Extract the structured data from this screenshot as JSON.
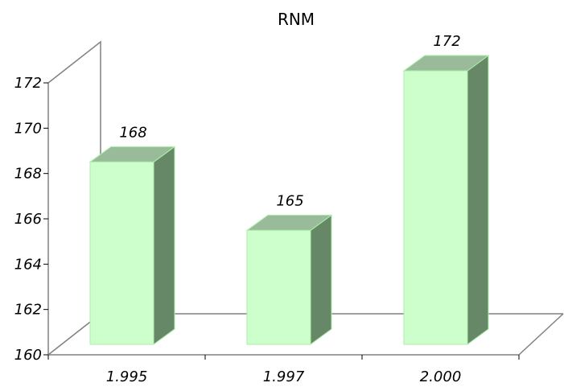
{
  "chart_data": {
    "type": "bar",
    "title": "RNM",
    "categories": [
      "1.995",
      "1.997",
      "2.000"
    ],
    "values": [
      168,
      165,
      172
    ],
    "data_labels": [
      "168",
      "165",
      "172"
    ],
    "ylim": [
      160,
      172
    ],
    "yticks": [
      "160",
      "162",
      "164",
      "166",
      "168",
      "170",
      "172"
    ],
    "xlabel": "",
    "ylabel": "",
    "grid": false,
    "legend": "none",
    "three_d": true,
    "colors": {
      "bar_front": "#ccffcc",
      "bar_top": "#99bb99",
      "bar_side": "#668866",
      "bar_edge": "#aaeeaa",
      "axis": "#808080"
    }
  }
}
